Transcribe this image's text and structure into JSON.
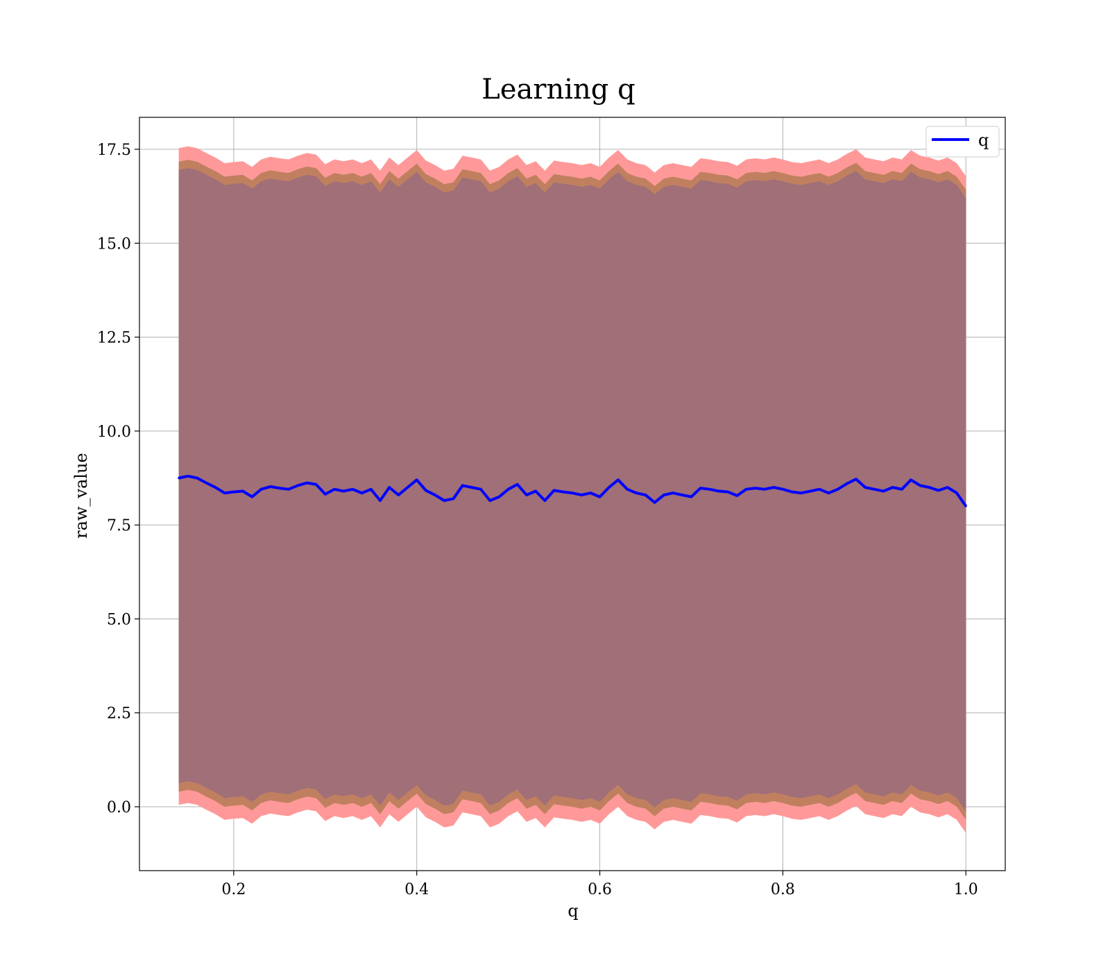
{
  "chart_data": {
    "type": "line",
    "title": "Learning q",
    "xlabel": "q",
    "ylabel": "raw_value",
    "xlim": [
      0.097,
      1.043
    ],
    "ylim": [
      -1.7,
      18.35
    ],
    "xticks": [
      0.2,
      0.4,
      0.6,
      0.8,
      1.0
    ],
    "xtick_labels": [
      "0.2",
      "0.4",
      "0.6",
      "0.8",
      "1.0"
    ],
    "yticks": [
      0.0,
      2.5,
      5.0,
      7.5,
      10.0,
      12.5,
      15.0,
      17.5
    ],
    "ytick_labels": [
      "0.0",
      "2.5",
      "5.0",
      "7.5",
      "10.0",
      "12.5",
      "15.0",
      "17.5"
    ],
    "grid": true,
    "legend": {
      "position": "top-right",
      "entries": [
        "q"
      ]
    },
    "colors": {
      "line": "#0000ff",
      "outer_band": "#ff9999",
      "inner_band": "#c08060",
      "core_band": "#a06f78"
    },
    "series": [
      {
        "name": "q",
        "x": [
          0.14,
          0.15,
          0.16,
          0.17,
          0.18,
          0.19,
          0.2,
          0.21,
          0.22,
          0.23,
          0.24,
          0.25,
          0.26,
          0.27,
          0.28,
          0.29,
          0.3,
          0.31,
          0.32,
          0.33,
          0.34,
          0.35,
          0.36,
          0.37,
          0.38,
          0.39,
          0.4,
          0.41,
          0.42,
          0.43,
          0.44,
          0.45,
          0.46,
          0.47,
          0.48,
          0.49,
          0.5,
          0.51,
          0.52,
          0.53,
          0.54,
          0.55,
          0.56,
          0.57,
          0.58,
          0.59,
          0.6,
          0.61,
          0.62,
          0.63,
          0.64,
          0.65,
          0.66,
          0.67,
          0.68,
          0.69,
          0.7,
          0.71,
          0.72,
          0.73,
          0.74,
          0.75,
          0.76,
          0.77,
          0.78,
          0.79,
          0.8,
          0.81,
          0.82,
          0.83,
          0.84,
          0.85,
          0.86,
          0.87,
          0.88,
          0.89,
          0.9,
          0.91,
          0.92,
          0.93,
          0.94,
          0.95,
          0.96,
          0.97,
          0.98,
          0.99,
          1.0
        ],
        "y": [
          8.75,
          8.8,
          8.75,
          8.62,
          8.5,
          8.35,
          8.38,
          8.4,
          8.25,
          8.45,
          8.52,
          8.48,
          8.45,
          8.55,
          8.62,
          8.58,
          8.32,
          8.45,
          8.4,
          8.45,
          8.35,
          8.45,
          8.15,
          8.5,
          8.3,
          8.5,
          8.7,
          8.42,
          8.3,
          8.15,
          8.2,
          8.55,
          8.5,
          8.45,
          8.15,
          8.25,
          8.45,
          8.58,
          8.3,
          8.4,
          8.15,
          8.42,
          8.38,
          8.35,
          8.3,
          8.35,
          8.25,
          8.5,
          8.7,
          8.45,
          8.35,
          8.3,
          8.1,
          8.3,
          8.35,
          8.3,
          8.25,
          8.48,
          8.45,
          8.4,
          8.38,
          8.28,
          8.45,
          8.48,
          8.45,
          8.5,
          8.45,
          8.38,
          8.35,
          8.4,
          8.45,
          8.35,
          8.45,
          8.6,
          8.72,
          8.5,
          8.45,
          8.4,
          8.5,
          8.45,
          8.7,
          8.55,
          8.5,
          8.42,
          8.5,
          8.35,
          8.0
        ]
      }
    ],
    "bands": [
      {
        "label": "",
        "color": "outer_band",
        "upper_offset": 8.78,
        "lower_offset": -8.7
      },
      {
        "label": "",
        "color": "inner_band",
        "upper_offset": 8.42,
        "lower_offset": -8.35
      },
      {
        "label": "",
        "color": "core_band",
        "upper_offset": 8.2,
        "lower_offset": -8.12
      }
    ]
  }
}
